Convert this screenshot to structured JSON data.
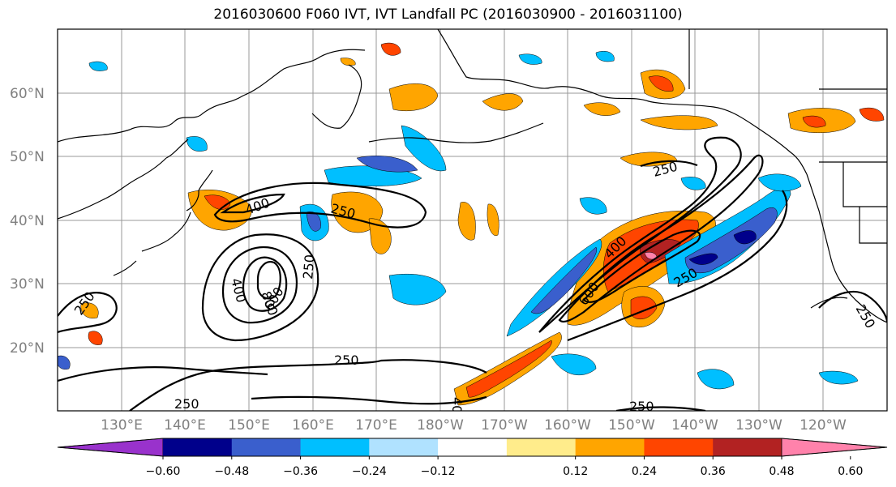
{
  "title": "2016030600 F060 IVT, IVT Landfall PC (2016030900 - 2016031100)",
  "lat_labels": [
    "60°N",
    "50°N",
    "40°N",
    "30°N",
    "20°N"
  ],
  "lon_labels": [
    "130°E",
    "140°E",
    "150°E",
    "160°E",
    "170°E",
    "180°W",
    "170°W",
    "160°W",
    "150°W",
    "140°W",
    "130°W",
    "120°W"
  ],
  "contour_labels": [
    "250",
    "400",
    "600",
    "800"
  ],
  "colorbar": {
    "colors": [
      "#9932cc",
      "#00008b",
      "#3a5fcd",
      "#00bfff",
      "#b0e2ff",
      "#ffffff",
      "#ffec8b",
      "#ffa500",
      "#ff4500",
      "#b22222",
      "#ff82ab"
    ],
    "ticks": [
      "−0.60",
      "−0.48",
      "−0.36",
      "−0.24",
      "−0.12",
      "0.12",
      "0.24",
      "0.36",
      "0.48",
      "0.60"
    ]
  }
}
